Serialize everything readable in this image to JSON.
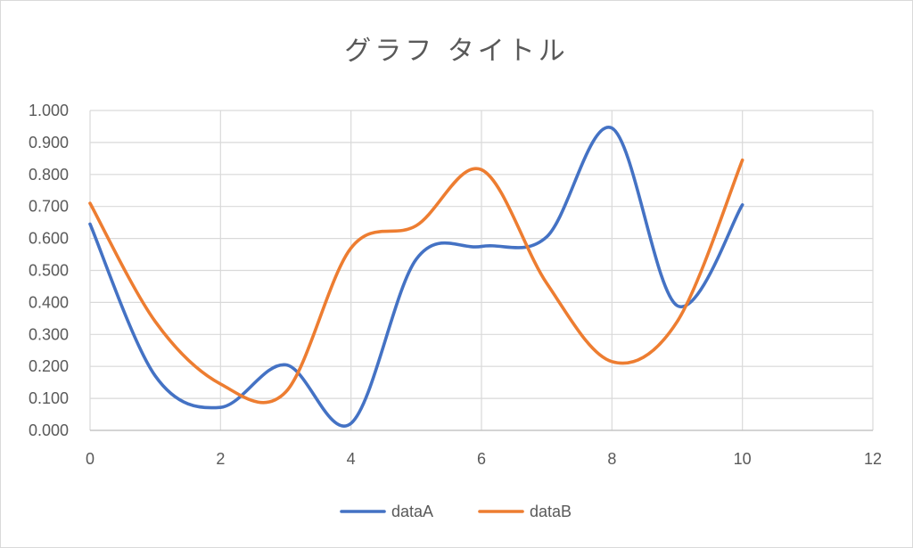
{
  "chart_data": {
    "type": "line",
    "title": "グラフ タイトル",
    "xlabel": "",
    "ylabel": "",
    "xlim": [
      0,
      12
    ],
    "ylim": [
      0,
      1.0
    ],
    "x_ticks": [
      0,
      2,
      4,
      6,
      8,
      10,
      12
    ],
    "x_tick_labels": [
      "0",
      "2",
      "4",
      "6",
      "8",
      "10",
      "12"
    ],
    "y_ticks": [
      0,
      0.1,
      0.2,
      0.3,
      0.4,
      0.5,
      0.6,
      0.7,
      0.8,
      0.9,
      1.0
    ],
    "y_tick_labels": [
      "0.000",
      "0.100",
      "0.200",
      "0.300",
      "0.400",
      "0.500",
      "0.600",
      "0.700",
      "0.800",
      "0.900",
      "1.000"
    ],
    "grid": true,
    "smooth": true,
    "legend_position": "bottom",
    "x": [
      0,
      1,
      2,
      3,
      4,
      5,
      6,
      7,
      8,
      9,
      10
    ],
    "series": [
      {
        "name": "dataA",
        "color": "#4472C4",
        "values": [
          0.645,
          0.17,
          0.072,
          0.205,
          0.022,
          0.535,
          0.575,
          0.605,
          0.945,
          0.39,
          0.705
        ]
      },
      {
        "name": "dataB",
        "color": "#ED7D31",
        "values": [
          0.71,
          0.34,
          0.145,
          0.12,
          0.57,
          0.64,
          0.815,
          0.46,
          0.215,
          0.34,
          0.845
        ]
      }
    ]
  }
}
